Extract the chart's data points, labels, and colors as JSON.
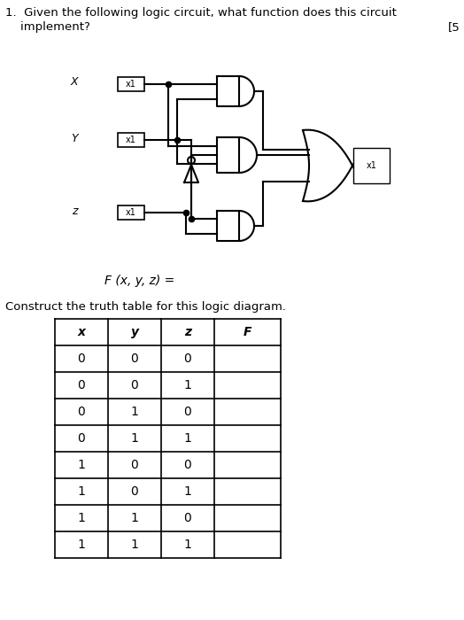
{
  "title_line1": "1.  Given the following logic circuit, what function does this circuit",
  "title_line2": "    implement?",
  "title_bracket": "[5",
  "fx_label": "F (x, y, z) =",
  "table_title": "Construct the truth table for this logic diagram.",
  "table_headers": [
    "x",
    "y",
    "z",
    "F"
  ],
  "table_rows": [
    [
      "0",
      "0",
      "0",
      ""
    ],
    [
      "0",
      "0",
      "1",
      ""
    ],
    [
      "0",
      "1",
      "0",
      ""
    ],
    [
      "0",
      "1",
      "1",
      ""
    ],
    [
      "1",
      "0",
      "0",
      ""
    ],
    [
      "1",
      "0",
      "1",
      ""
    ],
    [
      "1",
      "1",
      "0",
      ""
    ],
    [
      "1",
      "1",
      "1",
      ""
    ]
  ],
  "bg_color": "#ffffff",
  "text_color": "#000000"
}
